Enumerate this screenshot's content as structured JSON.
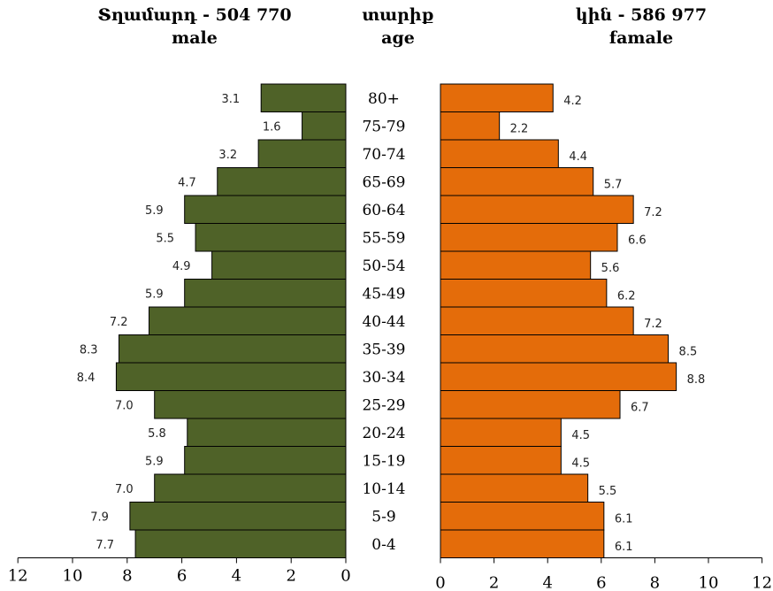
{
  "header": {
    "male_line1": "Տղամարդ  - 504  770",
    "male_line2": "male",
    "age_line1": "տարիք",
    "age_line2": "age",
    "female_line1": "կին  - 586 977",
    "female_line2": "famale"
  },
  "chart_data": {
    "type": "bar",
    "orientation": "horizontal",
    "categories": [
      "80+",
      "75-79",
      "70-74",
      "65-69",
      "60-64",
      "55-59",
      "50-54",
      "45-49",
      "40-44",
      "35-39",
      "30-34",
      "25-29",
      "20-24",
      "15-19",
      "10-14",
      "5-9",
      "0-4"
    ],
    "series": [
      {
        "name": "male",
        "values": [
          3.1,
          1.6,
          3.2,
          4.7,
          5.9,
          5.5,
          4.9,
          5.9,
          7.2,
          8.3,
          8.4,
          7.0,
          5.8,
          5.9,
          7.0,
          7.9,
          7.7
        ],
        "labels": [
          "3.1",
          "1.6",
          "3.2",
          "4.7",
          "5.9",
          "5.5",
          "4.9",
          "5.9",
          "7.2",
          "8.3",
          "8.4",
          "7.0",
          "5.8",
          "5.9",
          "7.0",
          "7.9",
          "7.7"
        ],
        "color": "#4f6228"
      },
      {
        "name": "famale",
        "values": [
          4.2,
          2.2,
          4.4,
          5.7,
          7.2,
          6.6,
          5.6,
          6.2,
          7.2,
          8.5,
          8.8,
          6.7,
          4.5,
          4.5,
          5.5,
          6.1,
          6.1
        ],
        "labels": [
          "4.2",
          "2.2",
          "4.4",
          "5.7",
          "7.2",
          "6.6",
          "5.6",
          "6.2",
          "7.2",
          "8.5",
          "8.8",
          "6.7",
          "4.5",
          "4.5",
          "5.5",
          "6.1",
          "6.1"
        ],
        "color": "#e46c0a"
      }
    ],
    "male_axis": {
      "range": [
        12,
        0
      ],
      "ticks": [
        "12",
        "10",
        "8",
        "6",
        "4",
        "2",
        "0"
      ]
    },
    "female_axis": {
      "range": [
        0,
        12
      ],
      "ticks": [
        "0",
        "2",
        "4",
        "6",
        "8",
        "10",
        "12"
      ]
    },
    "grid": false
  }
}
